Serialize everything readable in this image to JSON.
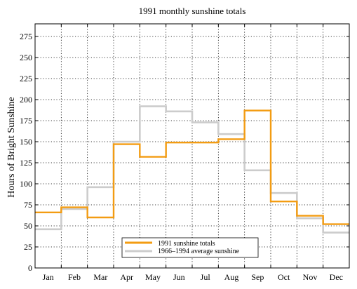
{
  "chart_data": {
    "type": "line",
    "step": true,
    "title": "1991 monthly sunshine totals",
    "xlabel": "",
    "ylabel": "Hours of Bright Sunshine",
    "categories": [
      "Jan",
      "Feb",
      "Mar",
      "Apr",
      "May",
      "Jun",
      "Jul",
      "Aug",
      "Sep",
      "Oct",
      "Nov",
      "Dec"
    ],
    "ylim": [
      0,
      290
    ],
    "yticks": [
      0,
      25,
      50,
      75,
      100,
      125,
      150,
      175,
      200,
      225,
      250,
      275
    ],
    "grid": true,
    "legend_position": "bottom-center",
    "series": [
      {
        "name": "1991 sunshine totals",
        "color": "#f39c12",
        "values": [
          66,
          72,
          60,
          147,
          132,
          149,
          149,
          153,
          187,
          79,
          62,
          52
        ]
      },
      {
        "name": "1966–1994 average sunshine",
        "color": "#cccccc",
        "values": [
          46,
          70,
          96,
          150,
          192,
          186,
          173,
          159,
          116,
          89,
          59,
          42
        ]
      }
    ]
  }
}
